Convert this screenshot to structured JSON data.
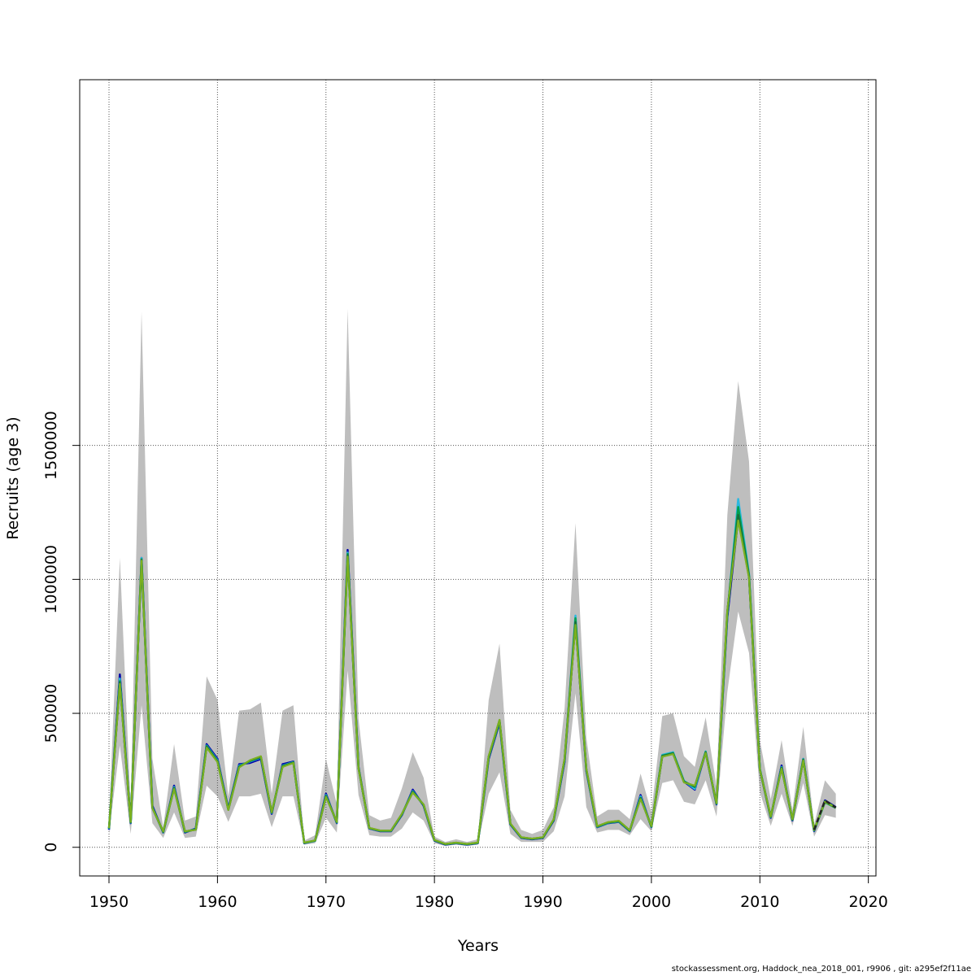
{
  "chart_data": {
    "type": "line",
    "xlabel": "Years",
    "ylabel": "Recruits (age 3)",
    "xlim": [
      1947.3,
      2020.7
    ],
    "ylim": [
      -107000,
      2865000
    ],
    "xticks": [
      1950,
      1960,
      1970,
      1980,
      1990,
      2000,
      2010,
      2020
    ],
    "yticks": [
      0,
      500000,
      1000000,
      1500000
    ],
    "grid": true,
    "colors": {
      "band": "#bebebe",
      "grid": "#555555",
      "series": [
        "#0000a8",
        "#2db8e0",
        "#00a050",
        "#1a6e3a",
        "#7ab020",
        "#222222"
      ]
    },
    "x": [
      1950,
      1951,
      1952,
      1953,
      1954,
      1955,
      1956,
      1957,
      1958,
      1959,
      1960,
      1961,
      1962,
      1963,
      1964,
      1965,
      1966,
      1967,
      1968,
      1969,
      1970,
      1971,
      1972,
      1973,
      1974,
      1975,
      1976,
      1977,
      1978,
      1979,
      1980,
      1981,
      1982,
      1983,
      1984,
      1985,
      1986,
      1987,
      1988,
      1989,
      1990,
      1991,
      1992,
      1993,
      1994,
      1995,
      1996,
      1997,
      1998,
      1999,
      2000,
      2001,
      2002,
      2003,
      2004,
      2005,
      2006,
      2007,
      2008,
      2009,
      2010,
      2011,
      2012,
      2013,
      2014,
      2015,
      2016,
      2017
    ],
    "band_upper": [
      95000,
      1080000,
      150000,
      2000000,
      330000,
      75000,
      385000,
      100000,
      115000,
      638000,
      550000,
      190000,
      510000,
      515000,
      540000,
      200000,
      510000,
      530000,
      25000,
      45000,
      330000,
      160000,
      2010000,
      480000,
      120000,
      100000,
      110000,
      220000,
      355000,
      260000,
      40000,
      20000,
      30000,
      20000,
      30000,
      550000,
      760000,
      140000,
      65000,
      50000,
      65000,
      150000,
      520000,
      1210000,
      410000,
      115000,
      140000,
      140000,
      105000,
      275000,
      130000,
      490000,
      500000,
      340000,
      300000,
      485000,
      230000,
      1240000,
      1740000,
      1440000,
      400000,
      180000,
      400000,
      140000,
      450000,
      85000,
      250000,
      200000
    ],
    "band_lower": [
      50000,
      380000,
      50000,
      530000,
      90000,
      35000,
      130000,
      35000,
      40000,
      230000,
      190000,
      95000,
      190000,
      190000,
      200000,
      75000,
      190000,
      190000,
      10000,
      15000,
      110000,
      55000,
      660000,
      195000,
      45000,
      40000,
      40000,
      70000,
      130000,
      100000,
      15000,
      5000,
      10000,
      5000,
      10000,
      200000,
      280000,
      50000,
      20000,
      20000,
      20000,
      60000,
      190000,
      575000,
      150000,
      55000,
      65000,
      65000,
      45000,
      105000,
      60000,
      240000,
      250000,
      170000,
      160000,
      250000,
      115000,
      580000,
      880000,
      725000,
      205000,
      80000,
      200000,
      80000,
      240000,
      40000,
      120000,
      110000
    ],
    "series": [
      {
        "values": [
          65000,
          645000,
          90000,
          1080000,
          155000,
          55000,
          230000,
          55000,
          70000,
          385000,
          330000,
          145000,
          310000,
          315000,
          330000,
          125000,
          310000,
          320000,
          15000,
          25000,
          200000,
          90000,
          1110000,
          300000,
          70000,
          60000,
          60000,
          120000,
          215000,
          155000,
          25000,
          10000,
          15000,
          10000,
          15000,
          330000,
          465000,
          85000,
          35000,
          30000,
          35000,
          100000,
          320000,
          845000,
          285000,
          75000,
          90000,
          95000,
          60000,
          195000,
          75000,
          340000,
          350000,
          245000,
          215000,
          355000,
          160000,
          860000,
          1230000,
          1010000,
          290000,
          110000,
          305000,
          100000,
          330000,
          60000,
          175000,
          150000
        ]
      },
      {
        "values": [
          68000,
          630000,
          92000,
          1080000,
          150000,
          56000,
          225000,
          57000,
          68000,
          380000,
          325000,
          142000,
          305000,
          320000,
          335000,
          128000,
          305000,
          318000,
          16000,
          24000,
          195000,
          92000,
          1100000,
          298000,
          71000,
          61000,
          61000,
          122000,
          210000,
          157000,
          26000,
          11000,
          16000,
          11000,
          16000,
          335000,
          470000,
          86000,
          36000,
          31000,
          36000,
          102000,
          325000,
          865000,
          288000,
          76000,
          91000,
          96000,
          61000,
          190000,
          76000,
          345000,
          355000,
          248000,
          218000,
          358000,
          162000,
          870000,
          1300000,
          1020000,
          292000,
          112000,
          300000,
          102000,
          330000,
          62000,
          170000,
          148000
        ]
      },
      {
        "values": [
          70000,
          620000,
          93000,
          1075000,
          148000,
          57000,
          222000,
          58000,
          67000,
          378000,
          322000,
          141000,
          302000,
          322000,
          337000,
          129000,
          303000,
          317000,
          16500,
          24500,
          192000,
          93000,
          1095000,
          297000,
          71500,
          61500,
          61500,
          123000,
          208000,
          158000,
          26500,
          11500,
          16500,
          11500,
          16500,
          337000,
          472000,
          87000,
          36500,
          31500,
          36500,
          103000,
          328000,
          855000,
          290000,
          77000,
          92000,
          97000,
          62000,
          185000,
          77000,
          342000,
          352000,
          246000,
          225000,
          356000,
          163000,
          875000,
          1270000,
          1015000,
          291000,
          113000,
          298000,
          103000,
          328000,
          63000,
          168000,
          147000
        ]
      },
      {
        "values": [
          71000,
          615000,
          94000,
          1072000,
          147000,
          58000,
          220000,
          59000,
          66000,
          375000,
          320000,
          140000,
          300000,
          323000,
          338000,
          130000,
          302000,
          316000,
          17000,
          25000,
          190000,
          94000,
          1090000,
          296000,
          72000,
          62000,
          62000,
          124000,
          206000,
          159000,
          27000,
          12000,
          17000,
          12000,
          17000,
          338000,
          474000,
          88000,
          37000,
          32000,
          37000,
          104000,
          330000,
          840000,
          292000,
          78000,
          93000,
          98000,
          63000,
          183000,
          78000,
          340000,
          350000,
          244000,
          228000,
          354000,
          164000,
          880000,
          1240000,
          1010000,
          290000,
          114000,
          296000,
          104000,
          326000,
          64000,
          172000,
          149000
        ]
      },
      {
        "values": [
          72000,
          610000,
          95000,
          1070000,
          146000,
          59000,
          218000,
          60000,
          65000,
          372000,
          318000,
          139000,
          298000,
          325000,
          340000,
          131000,
          300000,
          315000,
          17500,
          25500,
          188000,
          95000,
          1085000,
          295000,
          72500,
          62500,
          62500,
          125000,
          204000,
          160000,
          27500,
          12500,
          17500,
          12500,
          17500,
          340000,
          476000,
          89000,
          37500,
          32500,
          37500,
          105000,
          332000,
          830000,
          294000,
          79000,
          94000,
          99000,
          64000,
          180000,
          79000,
          338000,
          348000,
          242000,
          230000,
          352000,
          165000,
          885000,
          1220000,
          1005000,
          289000,
          115000,
          294000,
          105000,
          324000,
          65000,
          170000,
          148000
        ]
      },
      {
        "values": [
          null,
          null,
          null,
          null,
          null,
          null,
          null,
          null,
          null,
          null,
          null,
          null,
          null,
          null,
          null,
          null,
          null,
          null,
          null,
          null,
          null,
          null,
          null,
          null,
          null,
          null,
          null,
          null,
          null,
          null,
          null,
          null,
          null,
          null,
          null,
          null,
          null,
          null,
          null,
          null,
          null,
          null,
          null,
          null,
          null,
          null,
          null,
          null,
          null,
          null,
          null,
          null,
          null,
          null,
          null,
          null,
          null,
          null,
          null,
          null,
          null,
          null,
          null,
          null,
          null,
          65000,
          175000,
          148000
        ]
      }
    ]
  },
  "footnote": "stockassessment.org, Haddock_nea_2018_001, r9906 , git: a295ef2f11ae"
}
